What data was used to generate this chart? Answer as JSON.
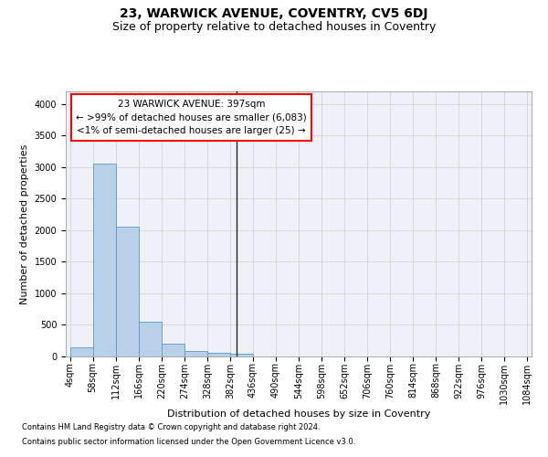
{
  "title": "23, WARWICK AVENUE, COVENTRY, CV5 6DJ",
  "subtitle": "Size of property relative to detached houses in Coventry",
  "xlabel": "Distribution of detached houses by size in Coventry",
  "ylabel": "Number of detached properties",
  "footnote1": "Contains HM Land Registry data © Crown copyright and database right 2024.",
  "footnote2": "Contains public sector information licensed under the Open Government Licence v3.0.",
  "annotation_line1": "23 WARWICK AVENUE: 397sqm",
  "annotation_line2": "← >99% of detached houses are smaller (6,083)",
  "annotation_line3": "<1% of semi-detached houses are larger (25) →",
  "property_size": 397,
  "bar_color": "#b8d0e8",
  "bar_edge_color": "#5a9ac8",
  "vline_color": "#222222",
  "background_color": "#eef2f8",
  "grid_color": "#cccccc",
  "bin_edges": [
    4,
    58,
    112,
    166,
    220,
    274,
    328,
    382,
    436,
    490,
    544,
    598,
    652,
    706,
    760,
    814,
    868,
    922,
    976,
    1030,
    1084
  ],
  "bin_heights": [
    150,
    3050,
    2060,
    550,
    210,
    80,
    65,
    50,
    0,
    0,
    0,
    0,
    0,
    0,
    0,
    0,
    0,
    0,
    0,
    0
  ],
  "ylim": [
    0,
    4200
  ],
  "yticks": [
    0,
    500,
    1000,
    1500,
    2000,
    2500,
    3000,
    3500,
    4000
  ],
  "title_fontsize": 10,
  "subtitle_fontsize": 9,
  "axis_label_fontsize": 8,
  "tick_fontsize": 7,
  "annotation_fontsize": 7.5,
  "footnote_fontsize": 6
}
